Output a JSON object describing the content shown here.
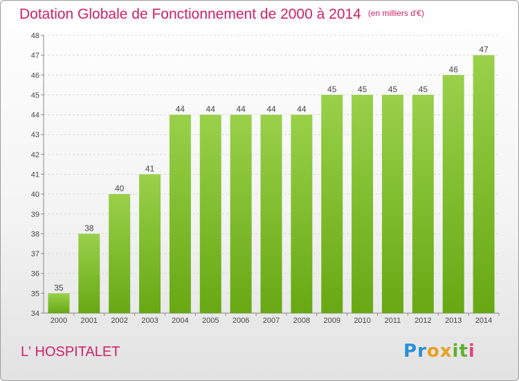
{
  "title": "Dotation Globale de Fonctionnement de 2000 à 2014",
  "unit_note": "(en milliers d'€)",
  "place": "L' HOSPITALET",
  "logo": {
    "letters": [
      "P",
      "r",
      "o",
      "x",
      "i",
      "t",
      "i"
    ],
    "colors": [
      "#2a8fd6",
      "#2a8fd6",
      "#e8a020",
      "#e8a020",
      "#60b030",
      "#60b030",
      "#e04a7a"
    ]
  },
  "colors": {
    "bar_top": "#99d14a",
    "bar_bottom": "#67a813",
    "title": "#cc2266"
  },
  "chart_data": {
    "type": "bar",
    "categories": [
      "2000",
      "2001",
      "2002",
      "2003",
      "2004",
      "2005",
      "2006",
      "2007",
      "2008",
      "2009",
      "2010",
      "2011",
      "2012",
      "2013",
      "2014"
    ],
    "values": [
      35,
      38,
      40,
      41,
      44,
      44,
      44,
      44,
      44,
      45,
      45,
      45,
      45,
      46,
      47
    ],
    "ylim": [
      34,
      48
    ],
    "yticks": [
      34,
      35,
      36,
      37,
      38,
      39,
      40,
      41,
      42,
      43,
      44,
      45,
      46,
      47,
      48
    ],
    "grid": true
  }
}
